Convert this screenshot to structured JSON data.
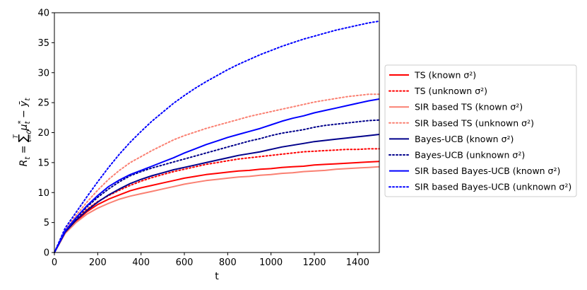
{
  "chart_data": {
    "type": "line",
    "xlabel": "t",
    "ylabel": "R_t = Σ_{t=0}^{T} μ*_t − ȳ_t",
    "xlim": [
      0,
      1500
    ],
    "ylim": [
      0,
      40
    ],
    "x_ticks": [
      0,
      200,
      400,
      600,
      800,
      1000,
      1200,
      1400
    ],
    "y_ticks": [
      0,
      5,
      10,
      15,
      20,
      25,
      30,
      35,
      40
    ],
    "grid": false,
    "legend_position": "outside-right",
    "x": [
      0,
      50,
      100,
      150,
      200,
      250,
      300,
      350,
      400,
      450,
      500,
      550,
      600,
      650,
      700,
      750,
      800,
      850,
      900,
      950,
      1000,
      1050,
      1100,
      1150,
      1200,
      1250,
      1300,
      1350,
      1400,
      1450,
      1500
    ],
    "series": [
      {
        "name": "TS (known σ²)",
        "color": "#ff0000",
        "style": "solid",
        "values": [
          0,
          3.3,
          5.2,
          6.8,
          8.0,
          8.9,
          9.6,
          10.3,
          10.8,
          11.2,
          11.6,
          12.0,
          12.4,
          12.7,
          13.0,
          13.2,
          13.4,
          13.6,
          13.7,
          13.9,
          14.0,
          14.2,
          14.3,
          14.4,
          14.6,
          14.7,
          14.8,
          14.9,
          15.0,
          15.1,
          15.2
        ]
      },
      {
        "name": "TS (unknown σ²)",
        "color": "#ff0000",
        "style": "dotted",
        "values": [
          0,
          3.5,
          5.5,
          7.2,
          8.5,
          9.5,
          10.4,
          11.2,
          11.9,
          12.5,
          13.0,
          13.5,
          13.9,
          14.3,
          14.7,
          15.0,
          15.3,
          15.6,
          15.8,
          16.0,
          16.2,
          16.4,
          16.6,
          16.8,
          16.9,
          17.0,
          17.1,
          17.2,
          17.2,
          17.3,
          17.3
        ]
      },
      {
        "name": "SIR based TS (known σ²)",
        "color": "#fa8072",
        "style": "solid",
        "values": [
          0,
          3.2,
          5.0,
          6.4,
          7.4,
          8.2,
          8.9,
          9.4,
          9.8,
          10.2,
          10.6,
          11.0,
          11.4,
          11.7,
          12.0,
          12.2,
          12.4,
          12.6,
          12.7,
          12.9,
          13.0,
          13.2,
          13.3,
          13.5,
          13.6,
          13.7,
          13.9,
          14.0,
          14.1,
          14.2,
          14.3
        ]
      },
      {
        "name": "SIR based TS (unknown σ²)",
        "color": "#fa8072",
        "style": "dotted",
        "values": [
          0,
          3.8,
          6.2,
          8.4,
          10.4,
          12.2,
          13.7,
          15.0,
          16.0,
          17.0,
          17.9,
          18.8,
          19.5,
          20.1,
          20.7,
          21.2,
          21.7,
          22.2,
          22.7,
          23.1,
          23.5,
          23.9,
          24.3,
          24.7,
          25.1,
          25.4,
          25.7,
          26.0,
          26.2,
          26.4,
          26.4
        ]
      },
      {
        "name": "Bayes-UCB (known σ²)",
        "color": "#00008b",
        "style": "solid",
        "values": [
          0,
          3.4,
          5.4,
          7.0,
          8.4,
          9.6,
          10.6,
          11.5,
          12.2,
          12.8,
          13.3,
          13.8,
          14.2,
          14.6,
          15.0,
          15.4,
          15.8,
          16.2,
          16.5,
          16.8,
          17.2,
          17.6,
          17.9,
          18.2,
          18.5,
          18.7,
          18.9,
          19.1,
          19.3,
          19.5,
          19.7
        ]
      },
      {
        "name": "Bayes-UCB (unknown σ²)",
        "color": "#00008b",
        "style": "dotted",
        "values": [
          0,
          3.6,
          5.7,
          7.6,
          9.2,
          10.6,
          11.8,
          12.8,
          13.5,
          14.1,
          14.6,
          15.1,
          15.6,
          16.1,
          16.6,
          17.1,
          17.6,
          18.1,
          18.6,
          19.0,
          19.5,
          19.9,
          20.2,
          20.5,
          20.9,
          21.2,
          21.4,
          21.6,
          21.8,
          22.0,
          22.1
        ]
      },
      {
        "name": "SIR based Bayes-UCB (known σ²)",
        "color": "#0000ff",
        "style": "solid",
        "values": [
          0,
          3.6,
          5.8,
          7.8,
          9.5,
          11.0,
          12.1,
          13.0,
          13.7,
          14.4,
          15.1,
          15.8,
          16.6,
          17.3,
          18.0,
          18.6,
          19.2,
          19.7,
          20.2,
          20.7,
          21.3,
          21.9,
          22.4,
          22.8,
          23.3,
          23.7,
          24.1,
          24.5,
          24.9,
          25.3,
          25.6
        ]
      },
      {
        "name": "SIR based Bayes-UCB (unknown σ²)",
        "color": "#0000ff",
        "style": "dotted",
        "values": [
          0,
          4.1,
          6.7,
          9.3,
          11.8,
          14.2,
          16.4,
          18.4,
          20.2,
          21.9,
          23.4,
          24.9,
          26.2,
          27.4,
          28.5,
          29.5,
          30.5,
          31.4,
          32.2,
          33.0,
          33.7,
          34.4,
          35.0,
          35.6,
          36.1,
          36.6,
          37.1,
          37.5,
          37.9,
          38.3,
          38.6
        ]
      }
    ]
  }
}
